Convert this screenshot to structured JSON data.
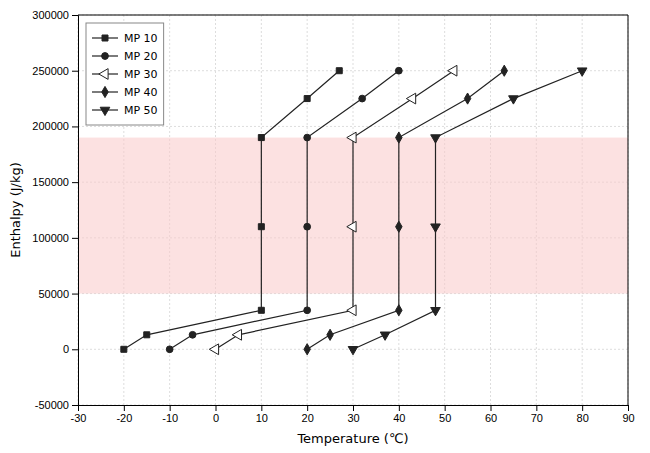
{
  "chart_data": {
    "type": "line",
    "xlabel": "Temperature (℃)",
    "ylabel": "Enthalpy (J/kg)",
    "xlim": [
      -30,
      90
    ],
    "ylim": [
      -50000,
      300000
    ],
    "xticks": [
      -30,
      -20,
      -10,
      0,
      10,
      20,
      30,
      40,
      50,
      60,
      70,
      80,
      90
    ],
    "yticks": [
      -50000,
      0,
      50000,
      100000,
      150000,
      200000,
      250000,
      300000
    ],
    "grid": true,
    "legend": "upper left",
    "shaded_region": {
      "ymin": 50000,
      "ymax": 190000,
      "color": "#f9c8c8"
    },
    "series": [
      {
        "name": "MP 10",
        "color": "#222222",
        "marker": "square",
        "x": [
          -20,
          -15,
          10,
          10,
          10,
          20,
          27
        ],
        "values": [
          0,
          13000,
          35000,
          110000,
          190000,
          225000,
          250000
        ]
      },
      {
        "name": "MP 20",
        "color": "#222222",
        "marker": "circle",
        "x": [
          -10,
          -5,
          20,
          20,
          20,
          32,
          40
        ],
        "values": [
          0,
          13000,
          35000,
          110000,
          190000,
          225000,
          250000
        ]
      },
      {
        "name": "MP 30",
        "color": "#222222",
        "marker": "triangle-left-open",
        "x": [
          0,
          5,
          30,
          30,
          30,
          43,
          52
        ],
        "values": [
          0,
          13000,
          35000,
          110000,
          190000,
          225000,
          250000
        ]
      },
      {
        "name": "MP 40",
        "color": "#222222",
        "marker": "diamond",
        "x": [
          20,
          25,
          40,
          40,
          40,
          55,
          63
        ],
        "values": [
          0,
          13000,
          35000,
          110000,
          190000,
          225000,
          250000
        ]
      },
      {
        "name": "MP 50",
        "color": "#222222",
        "marker": "triangle-down",
        "x": [
          30,
          37,
          48,
          48,
          48,
          65,
          80
        ],
        "values": [
          0,
          13000,
          35000,
          110000,
          190000,
          225000,
          250000
        ]
      }
    ]
  }
}
